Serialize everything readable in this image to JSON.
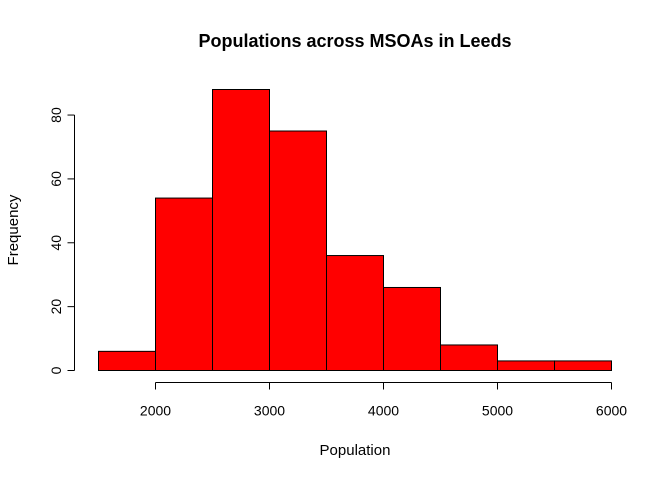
{
  "chart_data": {
    "type": "bar",
    "title": "Populations across MSOAs in Leeds",
    "xlabel": "Population",
    "ylabel": "Frequency",
    "bar_color": "#ff0000",
    "bins": [
      {
        "from": 1500,
        "to": 2000,
        "count": 6
      },
      {
        "from": 2000,
        "to": 2500,
        "count": 54
      },
      {
        "from": 2500,
        "to": 3000,
        "count": 88
      },
      {
        "from": 3000,
        "to": 3500,
        "count": 75
      },
      {
        "from": 3500,
        "to": 4000,
        "count": 36
      },
      {
        "from": 4000,
        "to": 4500,
        "count": 26
      },
      {
        "from": 4500,
        "to": 5000,
        "count": 8
      },
      {
        "from": 5000,
        "to": 5500,
        "count": 3
      },
      {
        "from": 5500,
        "to": 6000,
        "count": 3
      }
    ],
    "xlim": [
      1500,
      6000
    ],
    "ylim": [
      0,
      88
    ],
    "x_ticks": [
      "2000",
      "3000",
      "4000",
      "5000",
      "6000"
    ],
    "y_ticks": [
      "0",
      "20",
      "40",
      "60",
      "80"
    ],
    "grid": false
  }
}
